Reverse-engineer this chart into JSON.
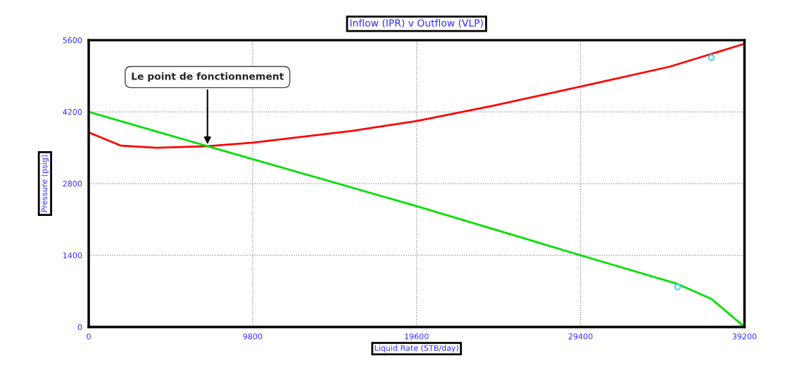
{
  "chart_data": {
    "type": "line",
    "title": "Inflow (IPR) v Outflow (VLP)",
    "xlabel": "Liquid Rate (STB/day)",
    "ylabel": "Pressure (psig)",
    "xlim": [
      0,
      39200
    ],
    "xticks": [
      0,
      9800,
      19600,
      29400,
      39200
    ],
    "ylim": [
      0,
      5600
    ],
    "yticks": [
      0,
      1400,
      2800,
      4200,
      5600
    ],
    "grid": true,
    "marker": "none",
    "line_style": "solid",
    "series": [
      {
        "color": "#ff0000",
        "x": [
          0,
          1940,
          4040,
          7100,
          9800,
          15750,
          19600,
          24170,
          29400,
          34700,
          39200
        ],
        "values": [
          3800,
          3540,
          3500,
          3530,
          3600,
          3830,
          4020,
          4320,
          4695,
          5080,
          5530
        ]
      },
      {
        "color": "#00e000",
        "x": [
          0,
          7100,
          19600,
          29400,
          35115,
          37220,
          39200
        ],
        "values": [
          4200,
          3530,
          2360,
          1400,
          850,
          550,
          0
        ]
      },
      {
        "type": "scatter",
        "color": "#40d8e0",
        "x": [
          37220,
          35200
        ],
        "values": [
          5260,
          780
        ]
      }
    ],
    "annotations": [
      {
        "text": "Le point de fonctionnement",
        "x": 7100,
        "y": 3530
      }
    ]
  }
}
